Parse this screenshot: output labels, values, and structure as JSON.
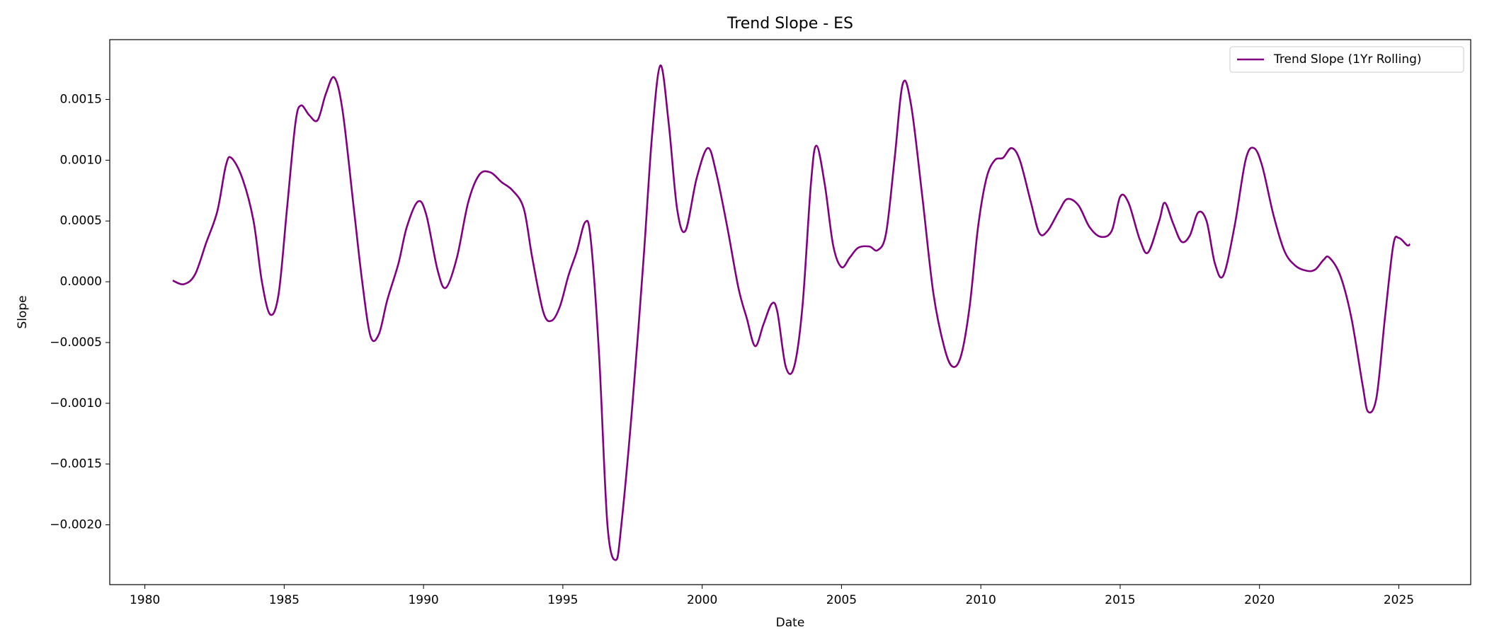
{
  "chart_data": {
    "type": "line",
    "title": "Trend Slope - ES",
    "x_label": "Date",
    "y_label": "Slope",
    "x": [
      1981.0,
      1981.4,
      1981.8,
      1982.2,
      1982.6,
      1982.9,
      1983.1,
      1983.5,
      1983.9,
      1984.2,
      1984.5,
      1984.8,
      1985.1,
      1985.4,
      1985.6,
      1985.9,
      1986.2,
      1986.5,
      1986.8,
      1987.1,
      1987.5,
      1987.8,
      1988.1,
      1988.4,
      1988.7,
      1989.1,
      1989.4,
      1989.8,
      1990.1,
      1990.5,
      1990.8,
      1991.2,
      1991.6,
      1992.0,
      1992.4,
      1992.8,
      1993.2,
      1993.6,
      1993.9,
      1994.3,
      1994.6,
      1994.9,
      1995.2,
      1995.5,
      1995.8,
      1996.0,
      1996.3,
      1996.6,
      1996.9,
      1997.1,
      1997.5,
      1997.9,
      1998.2,
      1998.5,
      1998.8,
      1999.1,
      1999.4,
      1999.8,
      2000.2,
      2000.5,
      2000.9,
      2001.3,
      2001.6,
      2001.9,
      2002.2,
      2002.5,
      2002.7,
      2003.0,
      2003.3,
      2003.6,
      2003.9,
      2004.1,
      2004.4,
      2004.7,
      2005.0,
      2005.3,
      2005.6,
      2006.0,
      2006.3,
      2006.6,
      2006.9,
      2007.2,
      2007.5,
      2007.9,
      2008.3,
      2008.7,
      2009.0,
      2009.3,
      2009.6,
      2009.9,
      2010.2,
      2010.5,
      2010.8,
      2011.1,
      2011.4,
      2011.8,
      2012.1,
      2012.4,
      2012.8,
      2013.1,
      2013.5,
      2013.9,
      2014.3,
      2014.7,
      2015.0,
      2015.3,
      2015.7,
      2016.0,
      2016.4,
      2016.6,
      2016.9,
      2017.2,
      2017.5,
      2017.8,
      2018.1,
      2018.4,
      2018.7,
      2019.1,
      2019.5,
      2019.8,
      2020.1,
      2020.5,
      2020.9,
      2021.3,
      2021.7,
      2022.0,
      2022.3,
      2022.5,
      2022.9,
      2023.3,
      2023.7,
      2023.9,
      2024.2,
      2024.5,
      2024.8,
      2025.0,
      2025.3,
      2025.4
    ],
    "series": [
      {
        "name": "Trend Slope (1Yr Rolling)",
        "color": "#800080",
        "values": [
          1e-05,
          -2e-05,
          6e-05,
          0.00032,
          0.00058,
          0.00095,
          0.00102,
          0.00085,
          0.0005,
          0.0,
          -0.00027,
          -0.0001,
          0.0006,
          0.0013,
          0.00145,
          0.00137,
          0.00133,
          0.00155,
          0.00168,
          0.0014,
          0.0006,
          0.0,
          -0.00045,
          -0.00043,
          -0.00015,
          0.00015,
          0.00045,
          0.00066,
          0.00055,
          0.0001,
          -5e-05,
          0.0002,
          0.00065,
          0.00088,
          0.0009,
          0.00082,
          0.00075,
          0.0006,
          0.0002,
          -0.00025,
          -0.00032,
          -0.0002,
          5e-05,
          0.00025,
          0.00049,
          0.00035,
          -0.0006,
          -0.002,
          -0.00229,
          -0.002,
          -0.001,
          0.0002,
          0.0012,
          0.00178,
          0.0013,
          0.0006,
          0.00042,
          0.00085,
          0.0011,
          0.0009,
          0.00045,
          -5e-05,
          -0.0003,
          -0.00053,
          -0.00035,
          -0.00018,
          -0.00025,
          -0.0007,
          -0.0007,
          -0.0002,
          0.0008,
          0.00112,
          0.0008,
          0.0003,
          0.00012,
          0.0002,
          0.00028,
          0.00029,
          0.00026,
          0.0004,
          0.001,
          0.00163,
          0.00145,
          0.0007,
          -0.0001,
          -0.00055,
          -0.0007,
          -0.0006,
          -0.0002,
          0.00045,
          0.00085,
          0.001,
          0.00102,
          0.0011,
          0.001,
          0.00065,
          0.0004,
          0.00042,
          0.00058,
          0.00068,
          0.00063,
          0.00045,
          0.00037,
          0.00042,
          0.0007,
          0.00065,
          0.00035,
          0.00024,
          0.0005,
          0.00065,
          0.00048,
          0.00033,
          0.00038,
          0.00057,
          0.0005,
          0.00015,
          5e-05,
          0.00045,
          0.001,
          0.0011,
          0.00095,
          0.00055,
          0.00025,
          0.00013,
          9e-05,
          0.0001,
          0.00018,
          0.0002,
          5e-05,
          -0.0003,
          -0.00085,
          -0.00107,
          -0.00095,
          -0.0003,
          0.0003,
          0.00036,
          0.0003,
          0.00031
        ]
      }
    ],
    "xlim": [
      1978.74,
      2027.58
    ],
    "xticks": [
      1980,
      1985,
      1990,
      1995,
      2000,
      2005,
      2010,
      2015,
      2020,
      2025
    ],
    "ylim": [
      -0.002492,
      0.001992
    ],
    "yticks": [
      {
        "value": -0.002,
        "label": "−0.0020"
      },
      {
        "value": -0.0015,
        "label": "−0.0015"
      },
      {
        "value": -0.001,
        "label": "−0.0010"
      },
      {
        "value": -0.0005,
        "label": "−0.0005"
      },
      {
        "value": 0,
        "label": "0.0000"
      },
      {
        "value": 0.0005,
        "label": "0.0005"
      },
      {
        "value": 0.001,
        "label": "0.0010"
      },
      {
        "value": 0.0015,
        "label": "0.0015"
      }
    ],
    "grid": false,
    "legend": "upper right"
  }
}
